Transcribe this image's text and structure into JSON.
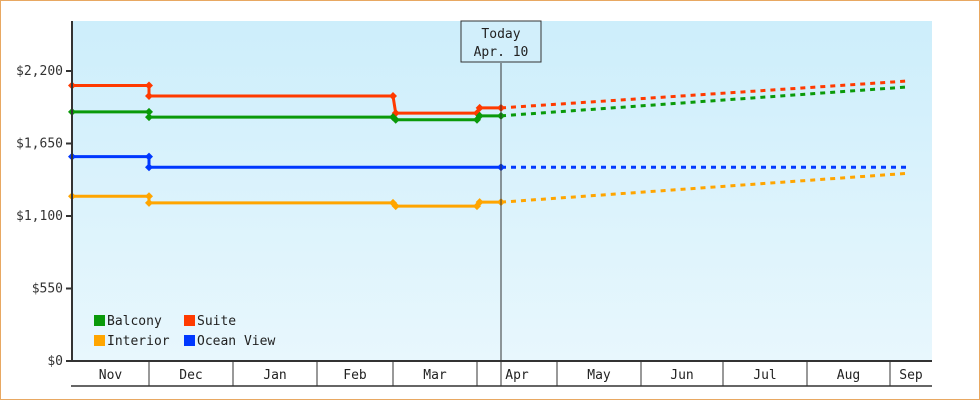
{
  "chart_data": {
    "type": "line",
    "title": "",
    "xlabel": "",
    "ylabel": "",
    "ylim": [
      0,
      2530
    ],
    "y_ticks": [
      {
        "label": "$0",
        "value": 0
      },
      {
        "label": "$550",
        "value": 550
      },
      {
        "label": "$1,100",
        "value": 1100
      },
      {
        "label": "$1,650",
        "value": 1650
      },
      {
        "label": "$2,200",
        "value": 2200
      }
    ],
    "x_ticks": [
      "Nov",
      "Dec",
      "Jan",
      "Feb",
      "Mar",
      "Apr",
      "May",
      "Jun",
      "Jul",
      "Aug",
      "Sep"
    ],
    "today_marker": {
      "line1": "Today",
      "line2": "Apr. 10"
    },
    "legend": [
      {
        "name": "Balcony",
        "color": "#0a9a0a"
      },
      {
        "name": "Suite",
        "color": "#ff3a00"
      },
      {
        "name": "Interior",
        "color": "#ffa500"
      },
      {
        "name": "Ocean View",
        "color": "#0038ff"
      }
    ],
    "series": [
      {
        "name": "Suite",
        "color": "#ff3a00",
        "historical": [
          {
            "date": "Nov 1",
            "value": 2090
          },
          {
            "date": "Dec 1",
            "value": 2090
          },
          {
            "date": "Dec 1",
            "value": 2010
          },
          {
            "date": "Mar 1",
            "value": 2010
          },
          {
            "date": "Mar 2",
            "value": 1880
          },
          {
            "date": "Apr 1",
            "value": 1880
          },
          {
            "date": "Apr 2",
            "value": 1920
          },
          {
            "date": "Apr 10",
            "value": 1920
          }
        ],
        "forecast": [
          {
            "date": "Apr 10",
            "value": 1920
          },
          {
            "date": "Sep 15",
            "value": 2125
          }
        ]
      },
      {
        "name": "Balcony",
        "color": "#0a9a0a",
        "historical": [
          {
            "date": "Nov 1",
            "value": 1890
          },
          {
            "date": "Dec 1",
            "value": 1890
          },
          {
            "date": "Dec 1",
            "value": 1850
          },
          {
            "date": "Mar 1",
            "value": 1850
          },
          {
            "date": "Mar 2",
            "value": 1830
          },
          {
            "date": "Apr 1",
            "value": 1830
          },
          {
            "date": "Apr 2",
            "value": 1860
          },
          {
            "date": "Apr 10",
            "value": 1860
          }
        ],
        "forecast": [
          {
            "date": "Apr 10",
            "value": 1860
          },
          {
            "date": "Sep 15",
            "value": 2080
          }
        ]
      },
      {
        "name": "Ocean View",
        "color": "#0038ff",
        "historical": [
          {
            "date": "Nov 1",
            "value": 1550
          },
          {
            "date": "Dec 1",
            "value": 1550
          },
          {
            "date": "Dec 1",
            "value": 1470
          },
          {
            "date": "Apr 10",
            "value": 1470
          }
        ],
        "forecast": [
          {
            "date": "Apr 10",
            "value": 1470
          },
          {
            "date": "Sep 15",
            "value": 1470
          }
        ]
      },
      {
        "name": "Interior",
        "color": "#ffa500",
        "historical": [
          {
            "date": "Nov 1",
            "value": 1250
          },
          {
            "date": "Dec 1",
            "value": 1250
          },
          {
            "date": "Dec 1",
            "value": 1200
          },
          {
            "date": "Mar 1",
            "value": 1200
          },
          {
            "date": "Mar 2",
            "value": 1175
          },
          {
            "date": "Apr 1",
            "value": 1175
          },
          {
            "date": "Apr 2",
            "value": 1205
          },
          {
            "date": "Apr 10",
            "value": 1205
          }
        ],
        "forecast": [
          {
            "date": "Apr 10",
            "value": 1205
          },
          {
            "date": "Sep 15",
            "value": 1425
          }
        ]
      }
    ],
    "grid": false,
    "legend_position": "bottom-left inside plot"
  }
}
